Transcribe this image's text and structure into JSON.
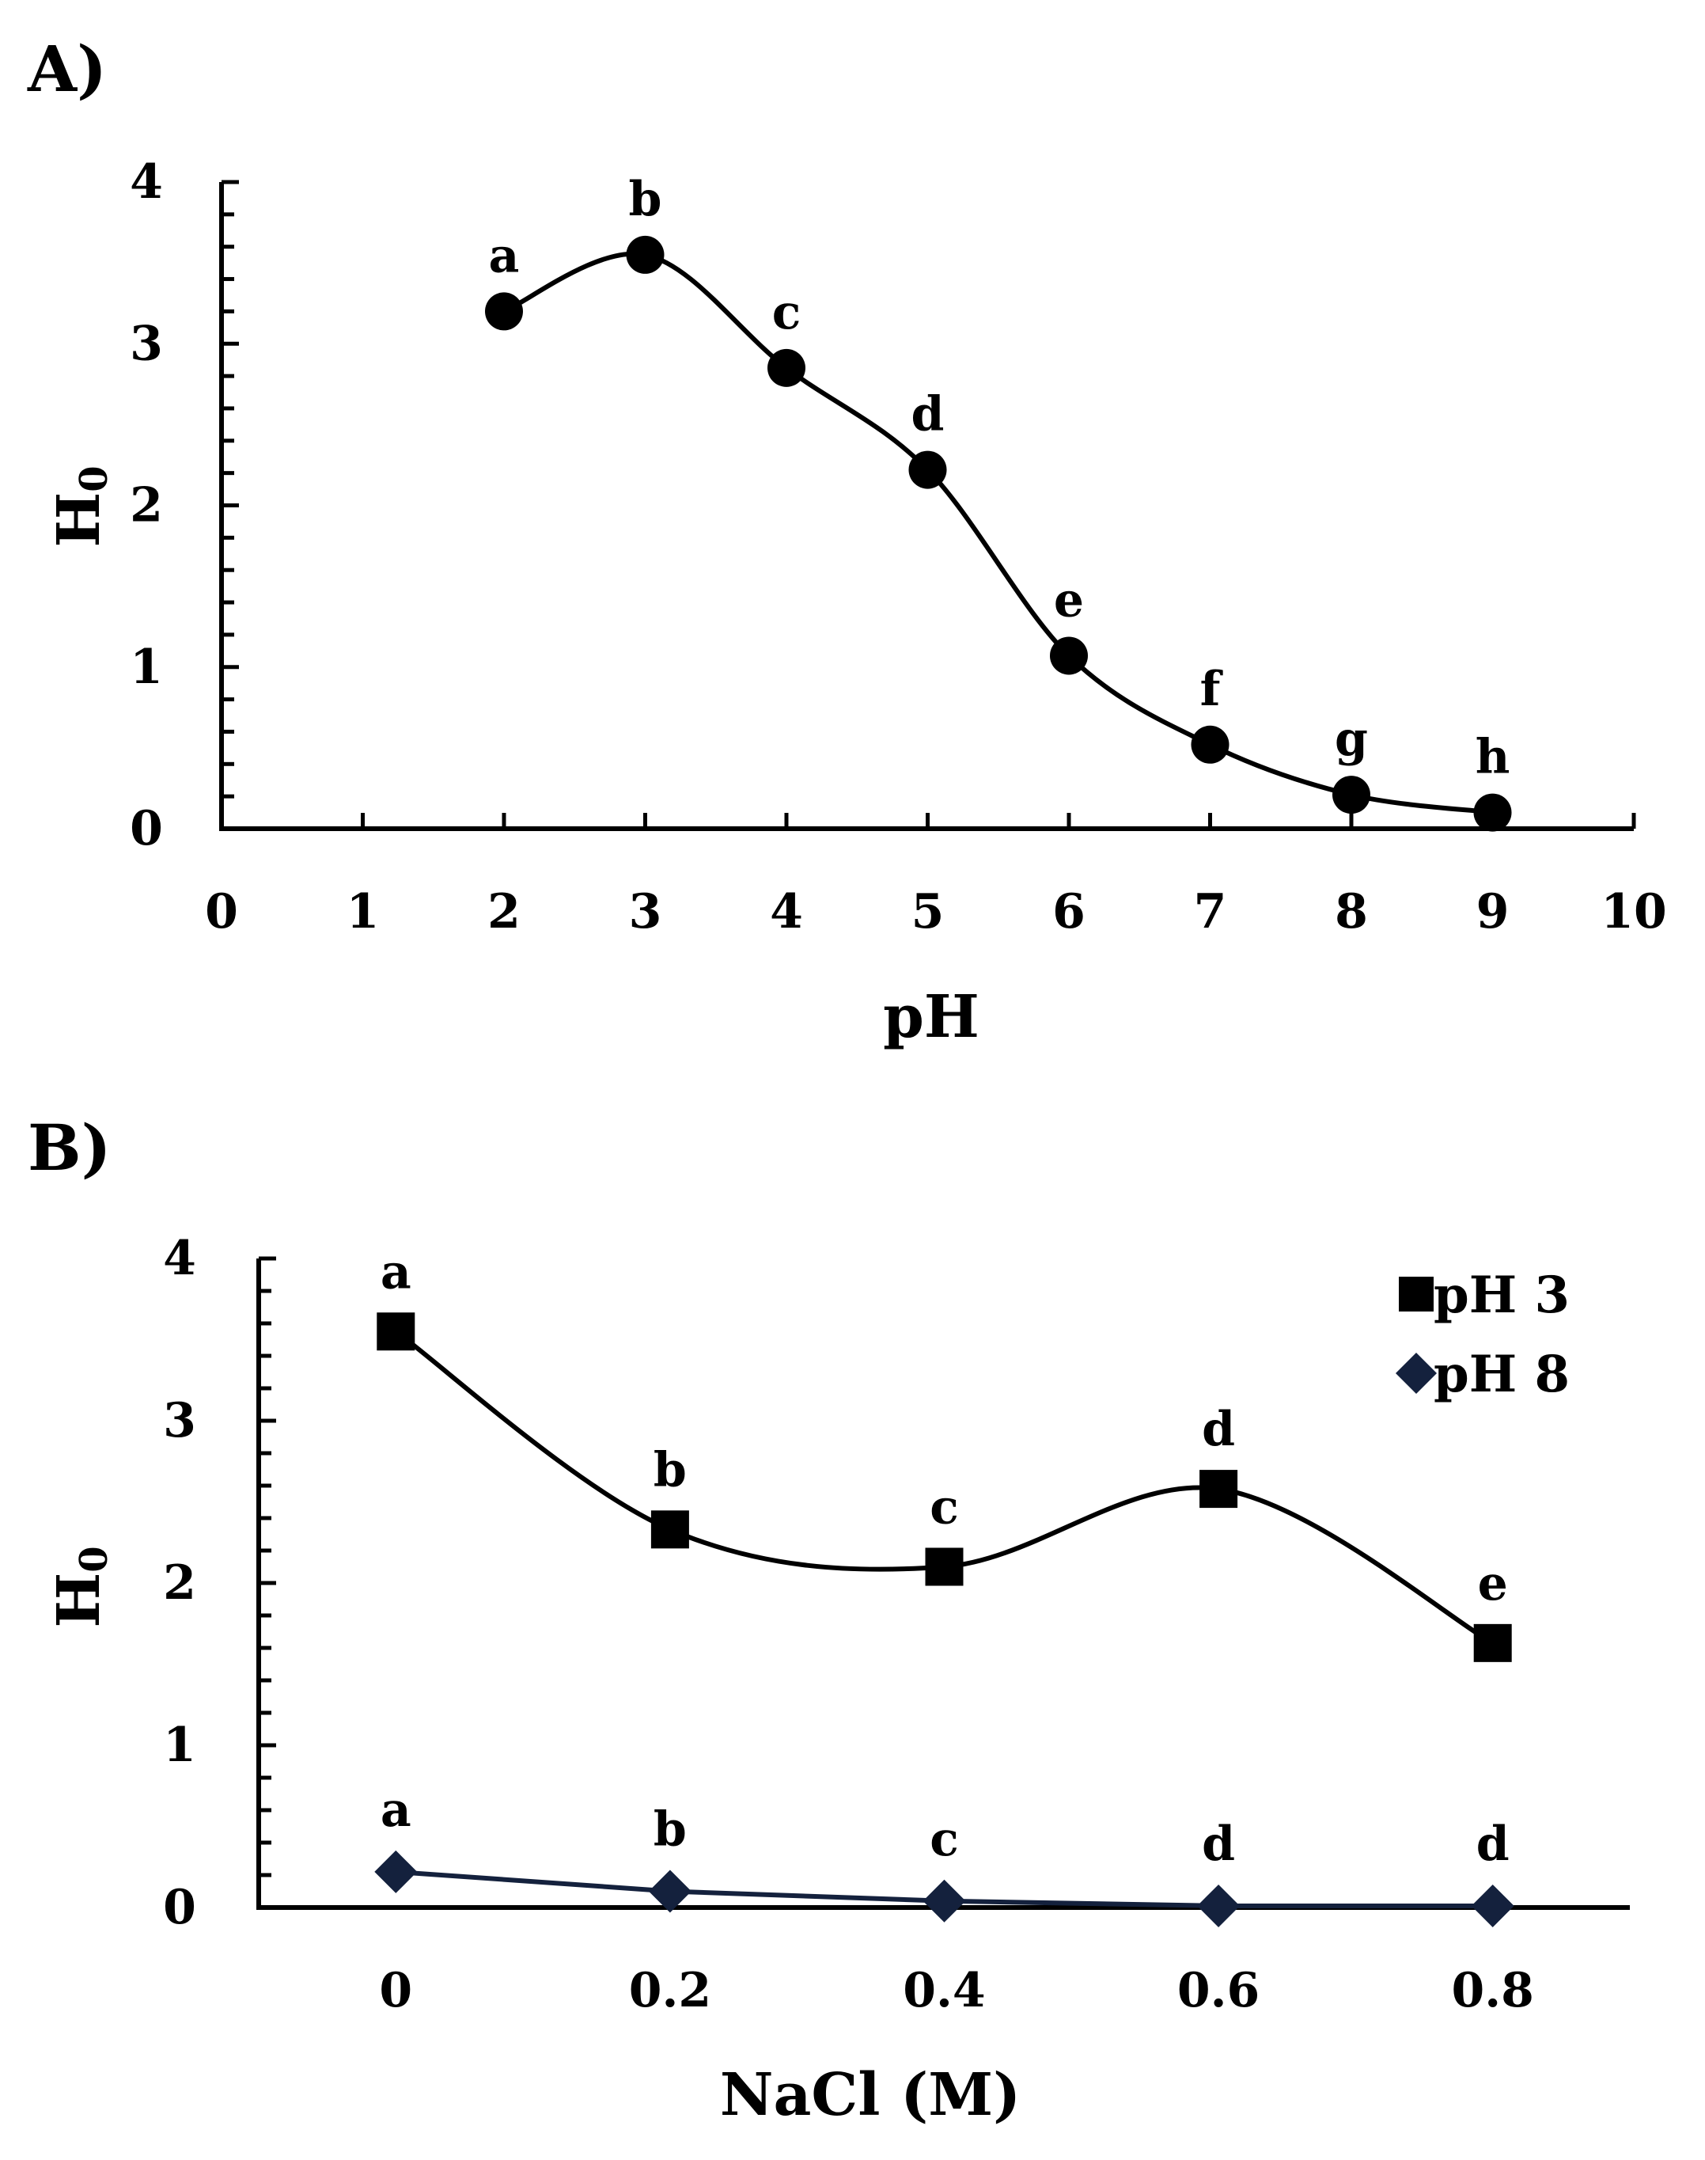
{
  "chart_data": [
    {
      "panel_label": "A)",
      "type": "line",
      "xlabel": "pH",
      "ylabel": {
        "main": "H",
        "subscript": "0"
      },
      "xlim": [
        0,
        10
      ],
      "ylim": [
        0,
        4
      ],
      "xticks": [
        "0",
        "1",
        "2",
        "3",
        "4",
        "5",
        "6",
        "7",
        "8",
        "9",
        "10"
      ],
      "yticks": [
        "0",
        "1",
        "2",
        "3",
        "4"
      ],
      "series": [
        {
          "name": "H0",
          "color": "#000000",
          "marker": "circle",
          "x": [
            2,
            3,
            4,
            5,
            6,
            7,
            8,
            9
          ],
          "values": [
            3.2,
            3.55,
            2.85,
            2.22,
            1.07,
            0.52,
            0.21,
            0.1
          ],
          "labels": [
            "a",
            "b",
            "c",
            "d",
            "e",
            "f",
            "g",
            "h"
          ]
        }
      ]
    },
    {
      "panel_label": "B)",
      "type": "line",
      "xlabel": "NaCl (M)",
      "ylabel": {
        "main": "H",
        "subscript": "0"
      },
      "xlim": [
        -0.1,
        0.9
      ],
      "ylim": [
        0,
        4
      ],
      "categories": [
        "0",
        "0.2",
        "0.4",
        "0.6",
        "0.8"
      ],
      "x": [
        0,
        0.2,
        0.4,
        0.6,
        0.8
      ],
      "yticks": [
        "0",
        "1",
        "2",
        "3",
        "4"
      ],
      "legend_position": "top-right",
      "series": [
        {
          "name": "pH 3",
          "color": "#000000",
          "marker": "square",
          "values": [
            3.55,
            2.33,
            2.1,
            2.58,
            1.63
          ],
          "labels": [
            "a",
            "b",
            "c",
            "d",
            "e"
          ]
        },
        {
          "name": "pH 8",
          "color": "#14213d",
          "marker": "diamond",
          "values": [
            0.22,
            0.1,
            0.04,
            0.01,
            0.01
          ],
          "labels": [
            "a",
            "b",
            "c",
            "d",
            "d"
          ]
        }
      ]
    }
  ]
}
